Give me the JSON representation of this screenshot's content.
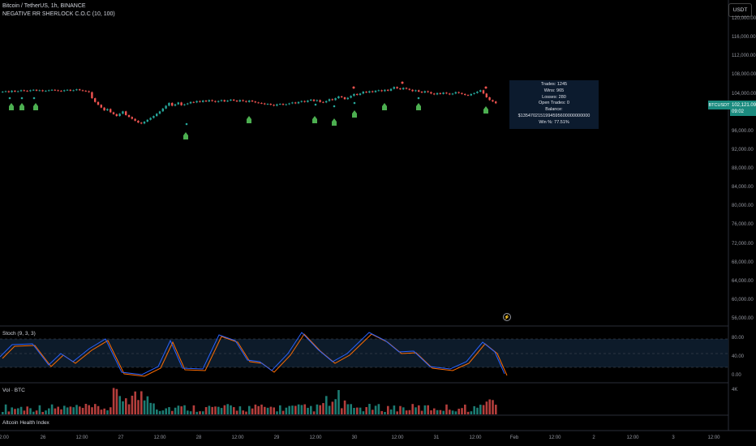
{
  "header": {
    "symbol_line": "Bitcoin / TetherUS, 1h, BINANCE",
    "indicator_line": "NEGATIVE RR SHERLOCK C.O.C (10, 100)"
  },
  "currency_button": "USDT",
  "price_axis": [
    "120,000.00",
    "116,000.00",
    "112,000.00",
    "108,000.00",
    "104,000.00",
    "96,000.00",
    "92,000.00",
    "88,000.00",
    "84,000.00",
    "80,000.00",
    "76,000.00",
    "72,000.00",
    "68,000.00",
    "64,000.00",
    "60,000.00",
    "56,000.00"
  ],
  "price_tag": {
    "symbol": "BTCUSDT",
    "price": "102,121.09",
    "countdown": "09:02"
  },
  "stats": {
    "trades": "Trades: 1245",
    "wins": "Wins: 965",
    "losses": "Losses: 280",
    "open": "Open Trades: 0",
    "balance": "Balance: $1354702151994595600000000000",
    "winpct": "Win %: 77.51%"
  },
  "stoch": {
    "title": "Stoch (9, 3, 3)",
    "levels": [
      "80.00",
      "40.00",
      "0.00"
    ]
  },
  "volume": {
    "title": "Vol · BTC",
    "scale": "4K"
  },
  "altcoin": {
    "title": "Altcoin Health Index"
  },
  "time_axis": [
    "2:00",
    "26",
    "12:00",
    "27",
    "12:00",
    "28",
    "12:00",
    "29",
    "12:00",
    "30",
    "12:00",
    "31",
    "12:00",
    "Feb",
    "12:00",
    "2",
    "12:00",
    "3",
    "12:00"
  ],
  "colors": {
    "up": "#26a69a",
    "down": "#ef5350",
    "stoch_k": "#2962ff",
    "stoch_d": "#ff6d00",
    "signal": "#4caf50"
  },
  "chart_data": {
    "type": "candlestick",
    "title": "Bitcoin / TetherUS, 1h, BINANCE",
    "close": [
      104600,
      104700,
      104500,
      104800,
      104600,
      104700,
      104900,
      104800,
      104700,
      104900,
      105000,
      104800,
      104900,
      104700,
      104800,
      104900,
      105000,
      104900,
      104800,
      104700,
      104900,
      105000,
      104800,
      104900,
      105100,
      104900,
      104800,
      104700,
      104500,
      103200,
      102400,
      101800,
      101200,
      100600,
      100900,
      100200,
      99800,
      99400,
      99900,
      100400,
      99600,
      99200,
      98800,
      98400,
      98000,
      97800,
      98200,
      98600,
      99000,
      99400,
      99900,
      100400,
      101000,
      101600,
      102200,
      101600,
      101900,
      102300,
      101700,
      101900,
      102100,
      102400,
      102300,
      102600,
      102400,
      102700,
      102500,
      102800,
      102600,
      102400,
      102600,
      102800,
      102500,
      102700,
      102900,
      102700,
      102500,
      102800,
      102600,
      102400,
      102700,
      102500,
      102300,
      102200,
      102100,
      101900,
      102000,
      101800,
      101600,
      101900,
      102000,
      101800,
      101900,
      102100,
      102300,
      102100,
      102400,
      102600,
      102400,
      102700,
      102900,
      102600,
      102800,
      102400,
      102300,
      102600,
      103000,
      102800,
      103200,
      103600,
      103400,
      103000,
      103300,
      103700,
      104100,
      103900,
      104200,
      104600,
      104400,
      104700,
      104500,
      104800,
      104900,
      104700,
      105000,
      104800,
      105200,
      105600,
      105300,
      105100,
      105400,
      105200,
      105000,
      104700,
      104900,
      104600,
      104400,
      104700,
      104500,
      104200,
      104000,
      104300,
      104100,
      104400,
      104200,
      104000,
      104200,
      104500,
      104300,
      104100,
      103900,
      103800,
      104100,
      104300,
      104600,
      104900,
      104200,
      103400,
      102800,
      102500,
      102121
    ]
  }
}
